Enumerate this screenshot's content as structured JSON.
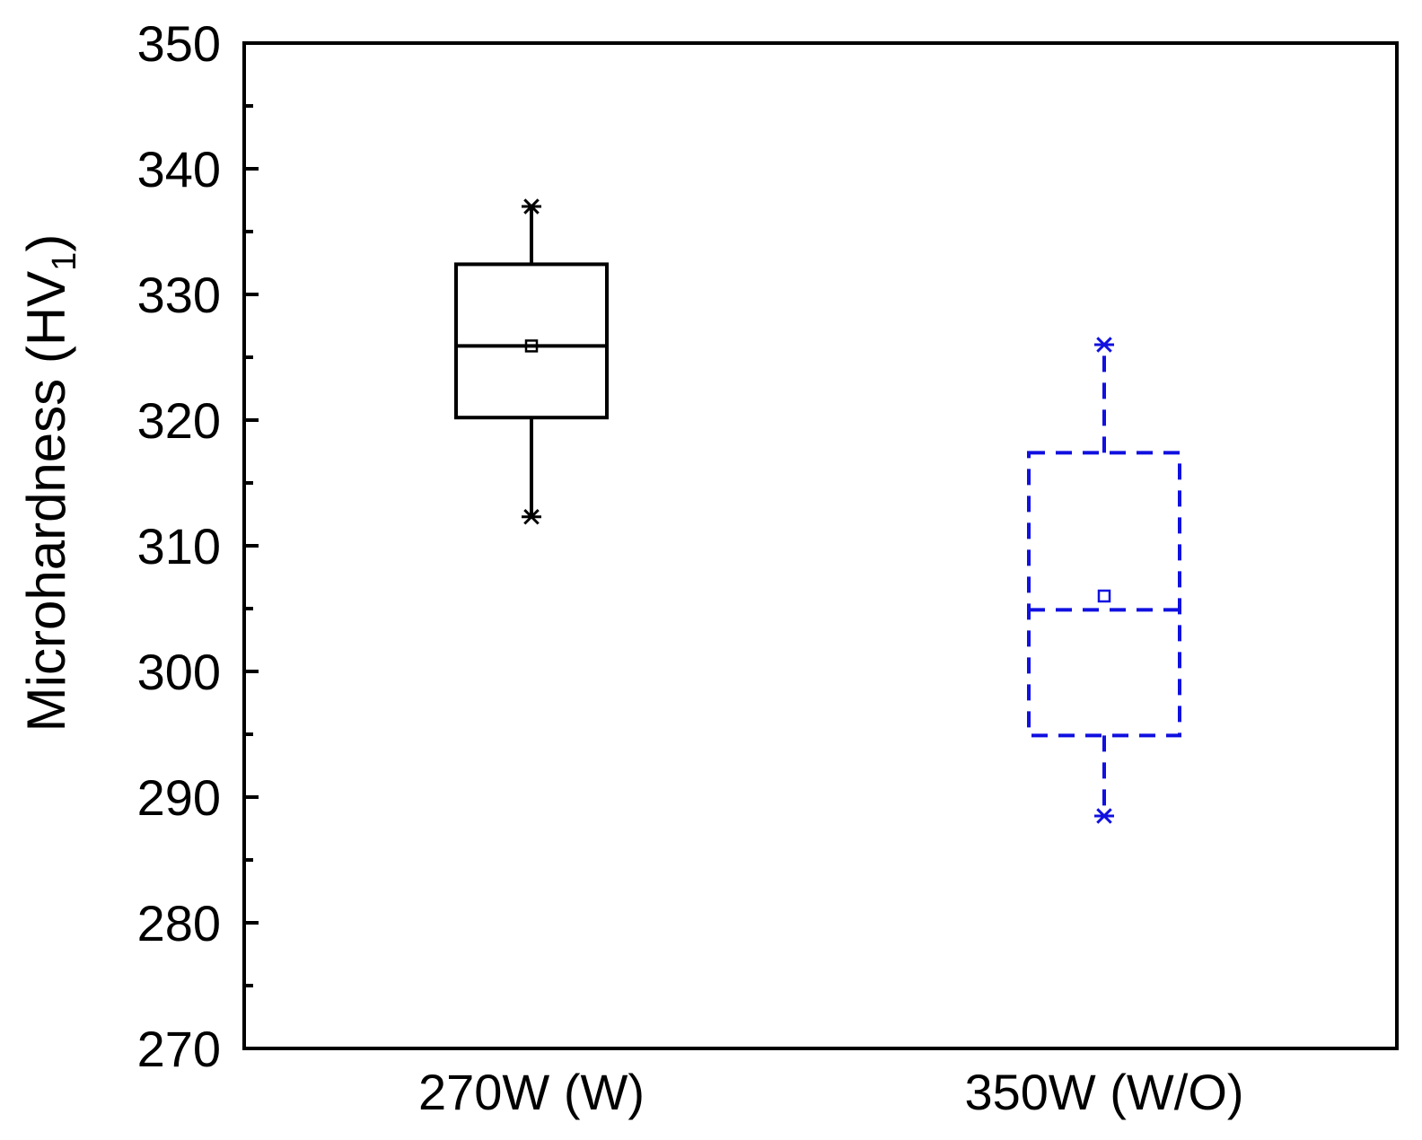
{
  "chart_data": {
    "type": "box",
    "title": "",
    "xlabel": "",
    "ylabel": "Microhardness (HV",
    "ylabel_subscript": "1",
    "ylabel_suffix": ")",
    "ylim": [
      270,
      350
    ],
    "yticks": [
      270,
      280,
      290,
      300,
      310,
      320,
      330,
      340,
      350
    ],
    "grid": false,
    "categories": [
      "270W (W)",
      "350W (W/O)"
    ],
    "series": [
      {
        "category": "270W (W)",
        "color": "#000000",
        "line_style": "solid",
        "min": 312.3,
        "q1": 320.2,
        "median": 325.9,
        "mean": 325.9,
        "q3": 332.4,
        "max": 337.0
      },
      {
        "category": "350W (W/O)",
        "color": "#1010e0",
        "line_style": "dashed",
        "min": 288.5,
        "q1": 294.9,
        "median": 304.9,
        "mean": 306.0,
        "q3": 317.4,
        "max": 326.0
      }
    ]
  }
}
